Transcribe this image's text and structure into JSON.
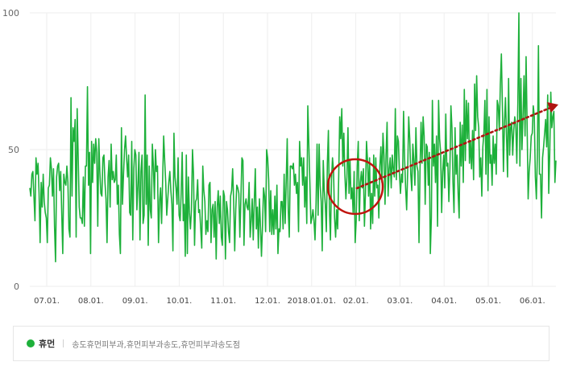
{
  "colors": {
    "line": "#1db03a",
    "circle": "#c0140e",
    "arrow": "#b01411",
    "grid": "#eeeeee"
  },
  "legend": {
    "series_name": "휴먼",
    "keywords": "송도휴먼피부과,휴먼피부과송도,휴먼피부과송도점"
  },
  "chart_data": {
    "type": "line",
    "ylim": [
      0,
      100
    ],
    "y_ticks": [
      "0",
      "50",
      "100"
    ],
    "x_ticks": [
      "07.01.",
      "08.01.",
      "09.01.",
      "10.01.",
      "11.01.",
      "12.01.",
      "2018.01.01.",
      "02.01.",
      "03.01.",
      "04.01.",
      "05.01.",
      "06.01."
    ],
    "grid": true,
    "series": [
      {
        "name": "휴먼",
        "values": [
          36,
          33,
          41,
          42,
          33,
          24,
          47,
          41,
          45,
          34,
          16,
          38,
          29,
          41,
          31,
          27,
          25,
          16,
          36,
          37,
          47,
          43,
          33,
          43,
          22,
          9,
          40,
          44,
          45,
          35,
          42,
          27,
          12,
          41,
          38,
          37,
          44,
          38,
          21,
          18,
          69,
          33,
          58,
          53,
          61,
          18,
          65,
          47,
          29,
          25,
          25,
          23,
          40,
          22,
          44,
          44,
          73,
          37,
          49,
          12,
          53,
          38,
          52,
          45,
          54,
          49,
          22,
          54,
          42,
          34,
          33,
          47,
          48,
          38,
          32,
          16,
          40,
          46,
          29,
          52,
          39,
          42,
          38,
          39,
          48,
          30,
          37,
          19,
          12,
          58,
          30,
          41,
          50,
          55,
          47,
          40,
          48,
          27,
          26,
          53,
          17,
          43,
          50,
          48,
          28,
          37,
          49,
          17,
          42,
          48,
          23,
          26,
          70,
          30,
          48,
          15,
          44,
          28,
          25,
          52,
          44,
          32,
          50,
          42,
          44,
          16,
          31,
          36,
          23,
          39,
          55,
          46,
          38,
          26,
          32,
          38,
          42,
          35,
          30,
          13,
          56,
          40,
          36,
          30,
          47,
          26,
          24,
          34,
          49,
          24,
          30,
          11,
          48,
          12,
          40,
          27,
          21,
          28,
          50,
          41,
          15,
          31,
          32,
          39,
          27,
          28,
          21,
          14,
          44,
          35,
          31,
          19,
          24,
          20,
          37,
          38,
          16,
          28,
          30,
          18,
          31,
          10,
          29,
          35,
          23,
          33,
          18,
          15,
          35,
          33,
          10,
          31,
          28,
          20,
          16,
          33,
          35,
          43,
          31,
          13,
          28,
          37,
          36,
          34,
          18,
          32,
          47,
          46,
          15,
          30,
          32,
          29,
          28,
          38,
          18,
          24,
          32,
          17,
          31,
          43,
          21,
          29,
          14,
          32,
          22,
          11,
          22,
          36,
          33,
          20,
          50,
          47,
          39,
          20,
          35,
          19,
          28,
          19,
          33,
          21,
          37,
          12,
          21,
          20,
          31,
          31,
          21,
          41,
          23,
          38,
          54,
          28,
          18,
          44,
          44,
          43,
          45,
          37,
          41,
          34,
          38,
          20,
          53,
          44,
          47,
          37,
          47,
          29,
          40,
          23,
          66,
          52,
          38,
          23,
          25,
          28,
          24,
          17,
          30,
          52,
          26,
          52,
          37,
          31,
          13,
          46,
          35,
          30,
          20,
          45,
          57,
          28,
          17,
          39,
          47,
          42,
          25,
          18,
          28,
          21,
          40,
          62,
          54,
          65,
          44,
          56,
          41,
          32,
          40,
          58,
          34,
          46,
          32,
          36,
          27,
          42,
          16,
          24,
          44,
          53,
          24,
          38,
          42,
          36,
          43,
          22,
          34,
          53,
          46,
          33,
          47,
          21,
          34,
          23,
          48,
          33,
          47,
          36,
          37,
          25,
          44,
          51,
          38,
          56,
          48,
          30,
          48,
          60,
          33,
          43,
          47,
          36,
          48,
          43,
          40,
          65,
          39,
          55,
          53,
          41,
          34,
          41,
          38,
          64,
          47,
          36,
          28,
          42,
          62,
          54,
          41,
          35,
          52,
          46,
          37,
          58,
          44,
          42,
          16,
          43,
          60,
          45,
          62,
          55,
          30,
          52,
          51,
          37,
          49,
          12,
          25,
          68,
          44,
          52,
          38,
          55,
          22,
          68,
          54,
          49,
          27,
          42,
          48,
          36,
          63,
          44,
          45,
          31,
          43,
          66,
          58,
          38,
          27,
          58,
          41,
          48,
          34,
          25,
          60,
          44,
          59,
          38,
          72,
          46,
          68,
          54,
          67,
          45,
          53,
          43,
          57,
          39,
          74,
          57,
          77,
          62,
          58,
          40,
          47,
          33,
          51,
          56,
          68,
          41,
          72,
          35,
          62,
          45,
          48,
          37,
          55,
          45,
          52,
          41,
          68,
          66,
          57,
          74,
          85,
          66,
          42,
          60,
          69,
          55,
          40,
          76,
          48,
          58,
          60,
          48,
          57,
          62,
          59,
          45,
          67,
          100,
          44,
          76,
          50,
          62,
          77,
          55,
          84,
          59,
          32,
          42,
          47,
          55,
          56,
          66,
          62,
          40,
          32,
          49,
          88,
          41,
          41,
          25,
          47,
          51,
          56,
          61,
          51,
          70,
          34,
          49,
          71,
          58,
          62,
          64,
          38,
          46
        ]
      }
    ]
  }
}
